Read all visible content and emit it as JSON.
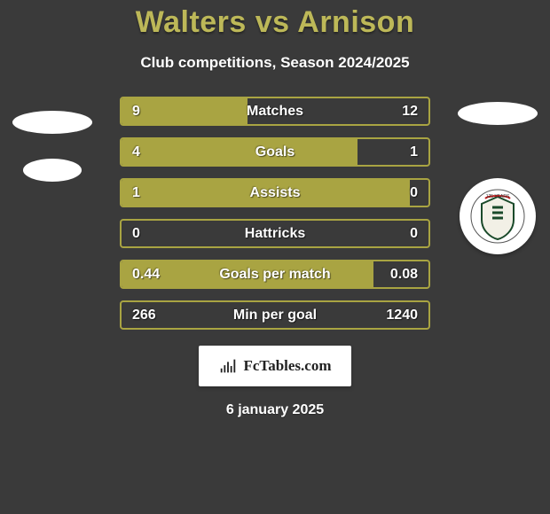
{
  "page": {
    "background_color": "#3a3a3a",
    "text_color": "#ffffff",
    "title": "Walters vs Arnison",
    "title_color": "#bdb858",
    "subtitle": "Club competitions, Season 2024/2025",
    "date": "6 january 2025",
    "brand": "FcTables.com"
  },
  "bars": {
    "border_color": "#a9a442",
    "fill_color": "#a9a442",
    "value_fontsize": 16,
    "label_fontsize": 16,
    "items": [
      {
        "label": "Matches",
        "left": "9",
        "right": "12",
        "fill_pct": 41
      },
      {
        "label": "Goals",
        "left": "4",
        "right": "1",
        "fill_pct": 77
      },
      {
        "label": "Assists",
        "left": "1",
        "right": "0",
        "fill_pct": 94
      },
      {
        "label": "Hattricks",
        "left": "0",
        "right": "0",
        "fill_pct": 0
      },
      {
        "label": "Goals per match",
        "left": "0.44",
        "right": "0.08",
        "fill_pct": 82
      },
      {
        "label": "Min per goal",
        "left": "266",
        "right": "1240",
        "fill_pct": 0
      }
    ]
  }
}
